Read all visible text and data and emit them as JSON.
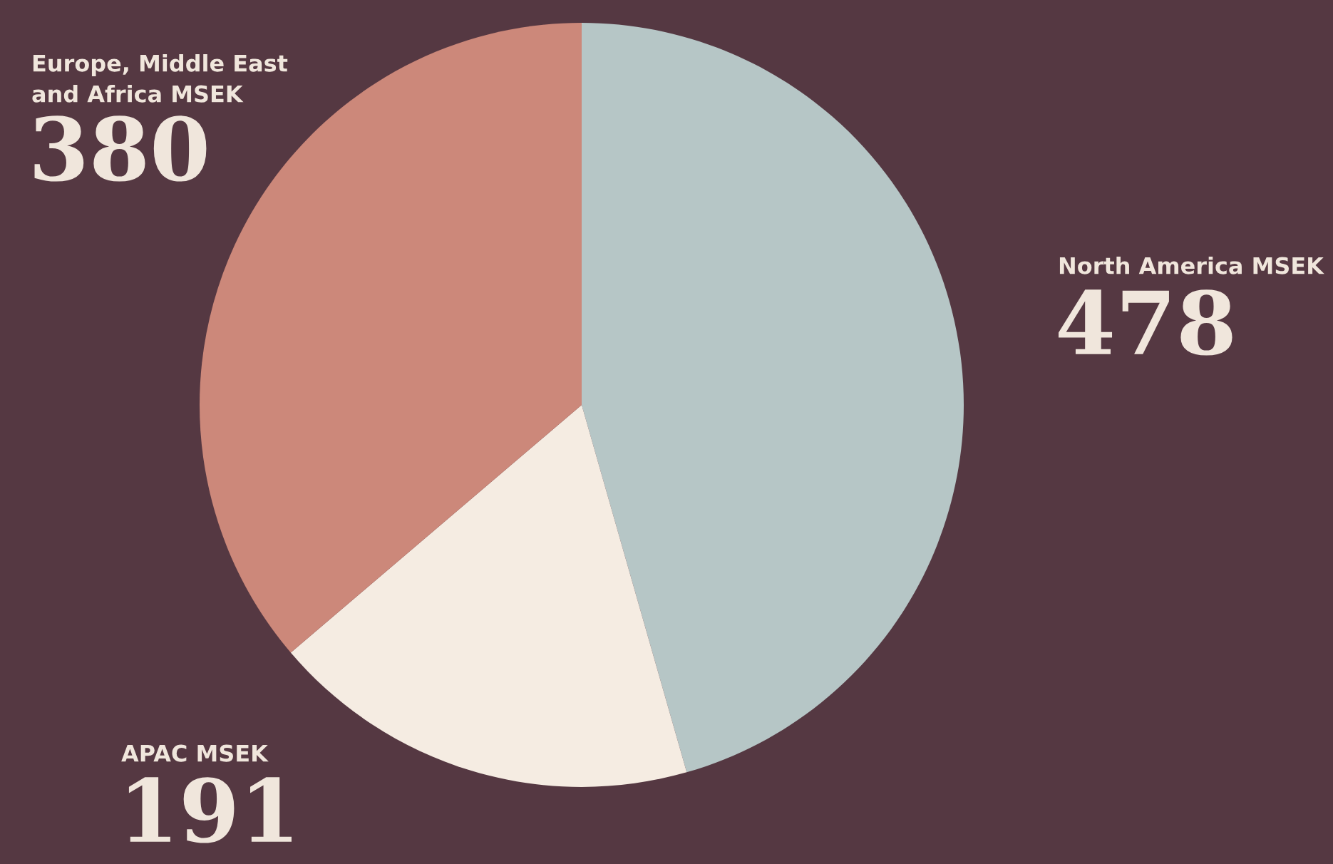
{
  "chart_data": {
    "type": "pie",
    "categories": [
      "North America MSEK",
      "APAC MSEK",
      "Europe, Middle East\nand Africa MSEK"
    ],
    "values": [
      478,
      191,
      380
    ],
    "colors": [
      "#b6c6c6",
      "#f5ece2",
      "#cc887a"
    ],
    "data_labels": true,
    "legend": false
  }
}
